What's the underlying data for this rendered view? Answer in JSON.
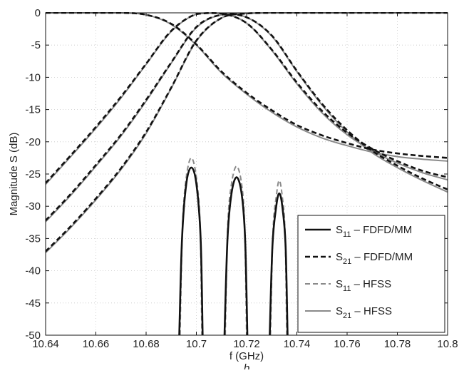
{
  "chart_data": {
    "type": "line",
    "title": "",
    "xlabel": "f (GHz)",
    "ylabel": "Magnitude S (dB)",
    "caption": "b",
    "xlim": [
      10.64,
      10.8
    ],
    "ylim": [
      -50,
      0
    ],
    "xticks": [
      10.64,
      10.66,
      10.68,
      10.7,
      10.72,
      10.74,
      10.76,
      10.78,
      10.8
    ],
    "xtick_labels": [
      "10.64",
      "10.66",
      "10.68",
      "10.7",
      "10.72",
      "10.74",
      "10.76",
      "10.78",
      "10.8"
    ],
    "yticks": [
      0,
      -5,
      -10,
      -15,
      -20,
      -25,
      -30,
      -35,
      -40,
      -45,
      -50
    ],
    "ytick_labels": [
      "0",
      "-5",
      "-10",
      "-15",
      "-20",
      "-25",
      "-30",
      "-35",
      "-40",
      "-45",
      "-50"
    ],
    "grid": true,
    "legend_position": "bottom-right",
    "legend": [
      {
        "main": "S",
        "sub": "11",
        "rest": " – FDFD/MM",
        "color": "#111111",
        "dash": "solid",
        "width": 2.6
      },
      {
        "main": "S",
        "sub": "21",
        "rest": " – FDFD/MM",
        "color": "#111111",
        "dash": "dashed",
        "width": 2.6
      },
      {
        "main": "S",
        "sub": "11",
        "rest": " – HFSS",
        "color": "#8a8a8a",
        "dash": "dashed",
        "width": 2.0
      },
      {
        "main": "S",
        "sub": "21",
        "rest": " – HFSS",
        "color": "#8a8a8a",
        "dash": "solid",
        "width": 2.0
      }
    ],
    "series": [
      {
        "legend_index": 3,
        "x": [
          10.64,
          10.65,
          10.66,
          10.67,
          10.68,
          10.69,
          10.7,
          10.71,
          10.72,
          10.73,
          10.74,
          10.75,
          10.76,
          10.77,
          10.78,
          10.79,
          10.8
        ],
        "y": [
          -37.2,
          -33.3,
          -29.0,
          -24.3,
          -18.7,
          -11.7,
          -4.4,
          -0.8,
          -0.1,
          0,
          0,
          0,
          0,
          0,
          0,
          0,
          0
        ]
      },
      {
        "legend_index": 3,
        "x": [
          10.64,
          10.65,
          10.66,
          10.67,
          10.68,
          10.69,
          10.7,
          10.71,
          10.72,
          10.73,
          10.74,
          10.75,
          10.76,
          10.77,
          10.78,
          10.79,
          10.8
        ],
        "y": [
          -32.4,
          -28.3,
          -23.8,
          -19.1,
          -13.7,
          -7.8,
          -2.3,
          -0.3,
          -0.7,
          -3.6,
          -9.1,
          -14.3,
          -18.5,
          -21.7,
          -24.0,
          -26.0,
          -27.8
        ]
      },
      {
        "legend_index": 3,
        "x": [
          10.64,
          10.65,
          10.66,
          10.67,
          10.68,
          10.69,
          10.7,
          10.71,
          10.72,
          10.73,
          10.74,
          10.75,
          10.76,
          10.77,
          10.78,
          10.79,
          10.8
        ],
        "y": [
          -26.6,
          -22.3,
          -17.9,
          -13.2,
          -8.0,
          -2.9,
          -0.2,
          -0.1,
          -1.6,
          -5.8,
          -11.0,
          -15.5,
          -18.9,
          -21.4,
          -23.3,
          -24.8,
          -25.9
        ]
      },
      {
        "legend_index": 3,
        "x": [
          10.64,
          10.65,
          10.66,
          10.67,
          10.68,
          10.69,
          10.7,
          10.71,
          10.72,
          10.73,
          10.74,
          10.75,
          10.76,
          10.77,
          10.78,
          10.79,
          10.8
        ],
        "y": [
          0,
          0,
          0,
          0,
          -0.3,
          -1.8,
          -5.0,
          -9.3,
          -12.6,
          -15.4,
          -17.7,
          -19.4,
          -20.6,
          -21.6,
          -22.3,
          -22.7,
          -23.0
        ]
      },
      {
        "legend_index": 1,
        "x": [
          10.64,
          10.65,
          10.66,
          10.67,
          10.68,
          10.69,
          10.7,
          10.71,
          10.72,
          10.73,
          10.74,
          10.75,
          10.76,
          10.77,
          10.78,
          10.79,
          10.8
        ],
        "y": [
          -37.0,
          -33.1,
          -28.8,
          -24.1,
          -18.5,
          -11.6,
          -4.3,
          -0.8,
          -0.1,
          0,
          0,
          0,
          0,
          0,
          0,
          0,
          0
        ]
      },
      {
        "legend_index": 1,
        "x": [
          10.64,
          10.65,
          10.66,
          10.67,
          10.68,
          10.69,
          10.7,
          10.71,
          10.72,
          10.73,
          10.74,
          10.75,
          10.76,
          10.77,
          10.78,
          10.79,
          10.8
        ],
        "y": [
          -32.2,
          -28.1,
          -23.6,
          -18.9,
          -13.5,
          -7.7,
          -2.2,
          -0.3,
          -0.7,
          -3.5,
          -9.0,
          -14.1,
          -18.2,
          -21.4,
          -23.7,
          -25.7,
          -27.4
        ]
      },
      {
        "legend_index": 1,
        "x": [
          10.64,
          10.65,
          10.66,
          10.67,
          10.68,
          10.69,
          10.7,
          10.71,
          10.72,
          10.73,
          10.74,
          10.75,
          10.76,
          10.77,
          10.78,
          10.79,
          10.8
        ],
        "y": [
          -26.4,
          -22.1,
          -17.7,
          -13.0,
          -7.9,
          -2.8,
          -0.2,
          -0.1,
          -1.6,
          -5.7,
          -10.8,
          -15.2,
          -18.6,
          -21.1,
          -23.0,
          -24.5,
          -25.5
        ]
      },
      {
        "legend_index": 1,
        "x": [
          10.64,
          10.65,
          10.66,
          10.67,
          10.68,
          10.69,
          10.7,
          10.71,
          10.72,
          10.73,
          10.74,
          10.75,
          10.76,
          10.77,
          10.78,
          10.79,
          10.8
        ],
        "y": [
          0,
          0,
          0,
          0,
          -0.3,
          -1.7,
          -4.9,
          -9.1,
          -12.4,
          -15.1,
          -17.4,
          -19.0,
          -20.2,
          -21.2,
          -21.8,
          -22.2,
          -22.5
        ]
      },
      {
        "legend_index": 2,
        "x": [
          10.6935,
          10.6945,
          10.696,
          10.698,
          10.7,
          10.7015,
          10.7022
        ],
        "y": [
          -50,
          -33,
          -25.5,
          -22.5,
          -25.5,
          -33,
          -50
        ]
      },
      {
        "legend_index": 2,
        "x": [
          10.7115,
          10.7125,
          10.714,
          10.716,
          10.718,
          10.7192,
          10.72
        ],
        "y": [
          -50,
          -33,
          -26.5,
          -23.8,
          -26.5,
          -33,
          -50
        ]
      },
      {
        "legend_index": 2,
        "x": [
          10.7295,
          10.7305,
          10.7318,
          10.733,
          10.7342,
          10.7353,
          10.736
        ],
        "y": [
          -50,
          -34,
          -28.5,
          -26.0,
          -28.5,
          -34,
          -50
        ]
      },
      {
        "legend_index": 0,
        "x": [
          10.6932,
          10.6943,
          10.696,
          10.698,
          10.7,
          10.7017,
          10.7025
        ],
        "y": [
          -50,
          -35,
          -26.5,
          -24.0,
          -26.5,
          -35,
          -50
        ]
      },
      {
        "legend_index": 0,
        "x": [
          10.7112,
          10.7124,
          10.714,
          10.716,
          10.718,
          10.7194,
          10.7203
        ],
        "y": [
          -50,
          -35,
          -28,
          -25.5,
          -28,
          -35,
          -50
        ]
      },
      {
        "legend_index": 0,
        "x": [
          10.7292,
          10.7303,
          10.7318,
          10.733,
          10.7342,
          10.7355,
          10.7363
        ],
        "y": [
          -50,
          -36,
          -30,
          -28.0,
          -30,
          -36,
          -50
        ]
      }
    ]
  }
}
